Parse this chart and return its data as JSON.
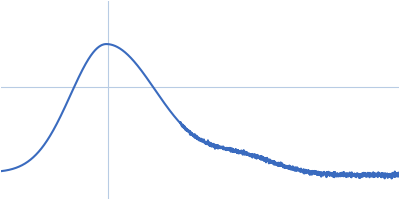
{
  "line_color": "#3a6bbf",
  "line_width": 1.5,
  "background_color": "#ffffff",
  "grid_color": "#b8cce4",
  "figsize": [
    4.0,
    2.0
  ],
  "dpi": 100,
  "xlim": [
    0.0,
    1.0
  ],
  "ylim": [
    -0.08,
    0.62
  ],
  "vline_x": 0.27,
  "hline_y": 0.315,
  "noise_seed": 42
}
